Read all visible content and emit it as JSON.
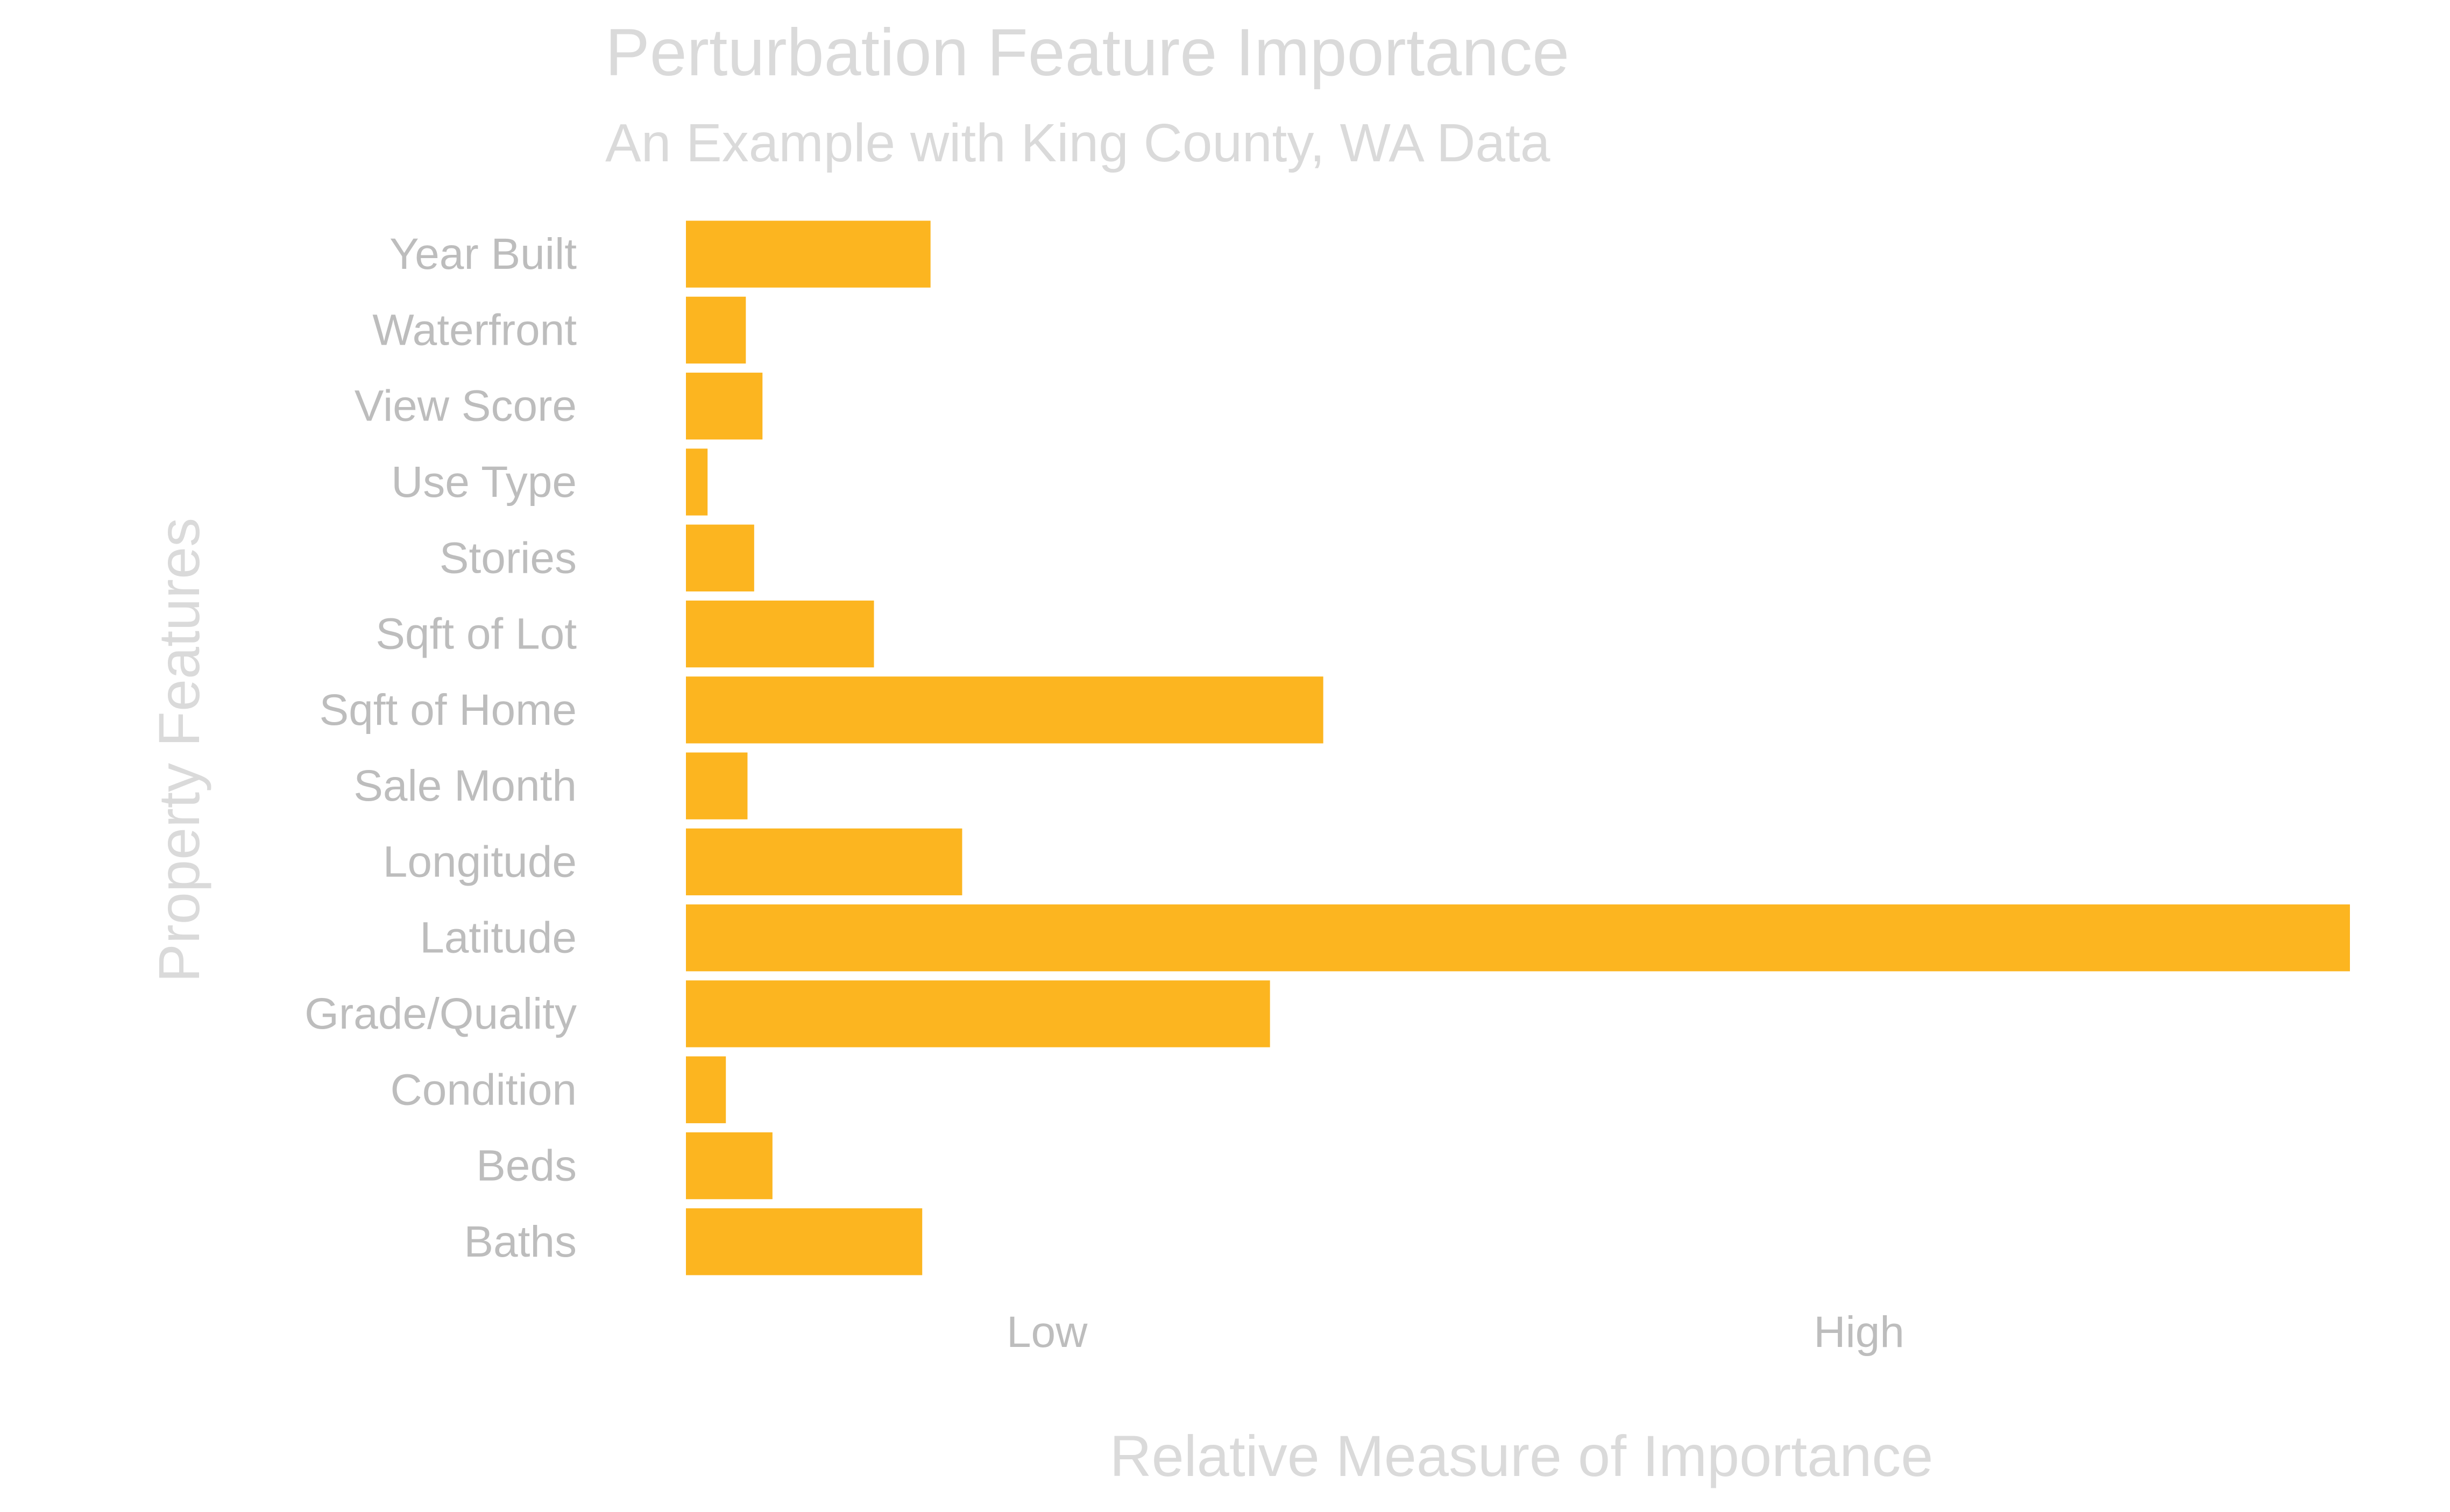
{
  "chart_data": {
    "type": "bar",
    "orientation": "horizontal",
    "title": "Perturbation Feature Importance",
    "subtitle": "An Example with King County, WA Data",
    "xlabel": "Relative Measure of Importance",
    "ylabel": "Property Features",
    "categories": [
      "Year Built",
      "Waterfront",
      "View Score",
      "Use Type",
      "Stories",
      "Sqft of Lot",
      "Sqft of Home",
      "Sale Month",
      "Longitude",
      "Latitude",
      "Grade/Quality",
      "Condition",
      "Beds",
      "Baths"
    ],
    "values": [
      0.147,
      0.036,
      0.046,
      0.013,
      0.041,
      0.113,
      0.383,
      0.037,
      0.166,
      1.0,
      0.351,
      0.024,
      0.052,
      0.142
    ],
    "xlim": [
      0,
      1.0
    ],
    "x_ticks": [
      {
        "value": 0.217,
        "label": "Low"
      },
      {
        "value": 0.705,
        "label": "High"
      }
    ],
    "grid": false,
    "legend": "none",
    "bar_color": "#FCB520"
  }
}
